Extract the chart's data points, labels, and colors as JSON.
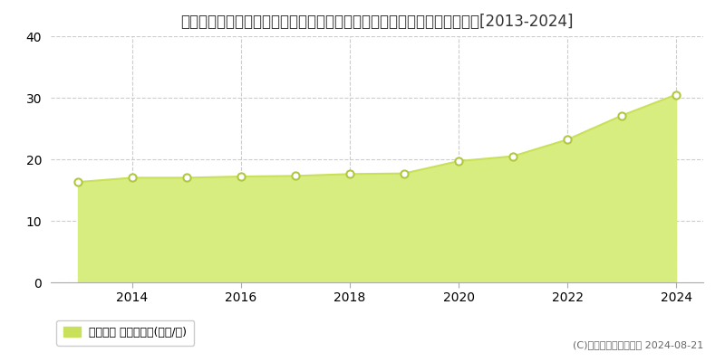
{
  "title": "北海道札幌市清田区北野３条３丁目１５８番６０外　地価公示　地価推移[2013-2024]",
  "years": [
    2013,
    2014,
    2015,
    2016,
    2017,
    2018,
    2019,
    2020,
    2021,
    2022,
    2023,
    2024
  ],
  "values": [
    16.3,
    17.0,
    17.0,
    17.2,
    17.3,
    17.6,
    17.7,
    19.7,
    20.5,
    23.2,
    27.1,
    30.5
  ],
  "line_color": "#c8e05a",
  "fill_color": "#d8ed80",
  "marker_facecolor": "#ffffff",
  "marker_edgecolor": "#b0c840",
  "grid_color": "#cccccc",
  "background_color": "#ffffff",
  "plot_bg_color": "#ffffff",
  "ylim": [
    0,
    40
  ],
  "yticks": [
    0,
    10,
    20,
    30,
    40
  ],
  "legend_label": "地価公示 平均坪単価(万円/坪)",
  "legend_color": "#c8e05a",
  "copyright_text": "(C)土地価格ドットコム 2024-08-21",
  "title_fontsize": 12,
  "tick_fontsize": 10,
  "legend_fontsize": 9,
  "copyright_fontsize": 8,
  "xlim": [
    2012.5,
    2024.5
  ]
}
